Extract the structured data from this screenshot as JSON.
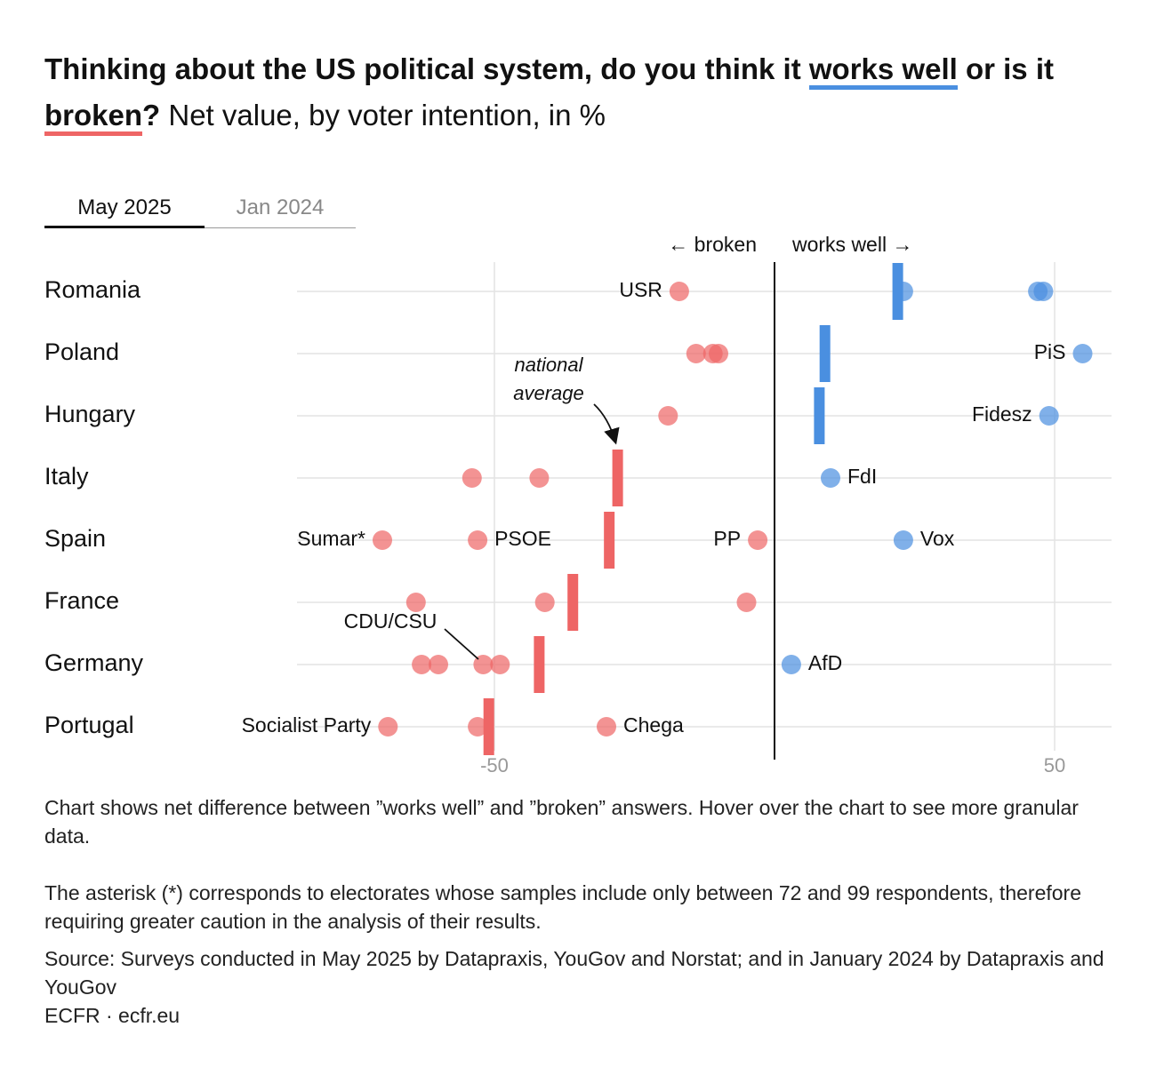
{
  "title": {
    "part1": "Thinking about the US political system, do you think it ",
    "works_well": "works well",
    "part2": " or is it ",
    "broken": "broken",
    "qmark": "?",
    "subtitle": " Net value, by voter intention, in %"
  },
  "tabs": [
    {
      "label": "May 2025",
      "active": true
    },
    {
      "label": "Jan 2024",
      "active": false
    }
  ],
  "colors": {
    "negative": "#ee6565",
    "positive": "#4a8fe0",
    "grid": "#e3e3e3"
  },
  "chart_data": {
    "type": "scatter",
    "x_range": [
      -85,
      60
    ],
    "axis_ticks": [
      {
        "value": -50,
        "label": "-50"
      },
      {
        "value": 50,
        "label": "50"
      }
    ],
    "direction_labels": {
      "left": "← broken",
      "right": "works well →"
    },
    "annotations": {
      "national_average_line1": "national",
      "national_average_line2": "average",
      "cdu": "CDU/CSU"
    },
    "countries": [
      {
        "name": "Romania",
        "average": 22,
        "parties": [
          {
            "label": "USR",
            "value": -17
          },
          {
            "value": 23
          },
          {
            "value": 47
          },
          {
            "value": 48
          }
        ]
      },
      {
        "name": "Poland",
        "average": 9,
        "parties": [
          {
            "value": -14
          },
          {
            "value": -11
          },
          {
            "value": -10
          },
          {
            "label": "PiS",
            "value": 55
          }
        ]
      },
      {
        "name": "Hungary",
        "average": 8,
        "parties": [
          {
            "value": -19
          },
          {
            "label": "Fidesz",
            "value": 49
          }
        ]
      },
      {
        "name": "Italy",
        "average": -28,
        "parties": [
          {
            "value": -54
          },
          {
            "value": -42
          },
          {
            "label": "FdI",
            "value": 10
          }
        ]
      },
      {
        "name": "Spain",
        "average": -29.5,
        "parties": [
          {
            "label": "Sumar*",
            "value": -70
          },
          {
            "label": "PSOE",
            "value": -53
          },
          {
            "label": "PP",
            "value": -3
          },
          {
            "label": "Vox",
            "value": 23
          }
        ]
      },
      {
        "name": "France",
        "average": -36,
        "parties": [
          {
            "value": -64
          },
          {
            "value": -41
          },
          {
            "value": -5
          }
        ]
      },
      {
        "name": "Germany",
        "average": -42,
        "parties": [
          {
            "value": -63
          },
          {
            "value": -60
          },
          {
            "value": -52
          },
          {
            "value": -49
          },
          {
            "label": "AfD",
            "value": 3
          }
        ]
      },
      {
        "name": "Portugal",
        "average": -51,
        "parties": [
          {
            "label": "Socialist Party",
            "value": -69
          },
          {
            "value": -53
          },
          {
            "label": "Chega",
            "value": -30
          }
        ]
      }
    ]
  },
  "footer": {
    "note1": "Chart shows net difference between ”works well” and ”broken” answers. Hover over the chart to see more granular data.",
    "note2": "The asterisk (*) corresponds to electorates whose samples include only between 72 and 99 respondents, therefore requiring greater caution in the analysis of their results.",
    "source": "Source: Surveys conducted in May 2025 by Datapraxis, YouGov and Norstat; and in January 2024 by Datapraxis and YouGov",
    "credit": "ECFR · ecfr.eu"
  }
}
